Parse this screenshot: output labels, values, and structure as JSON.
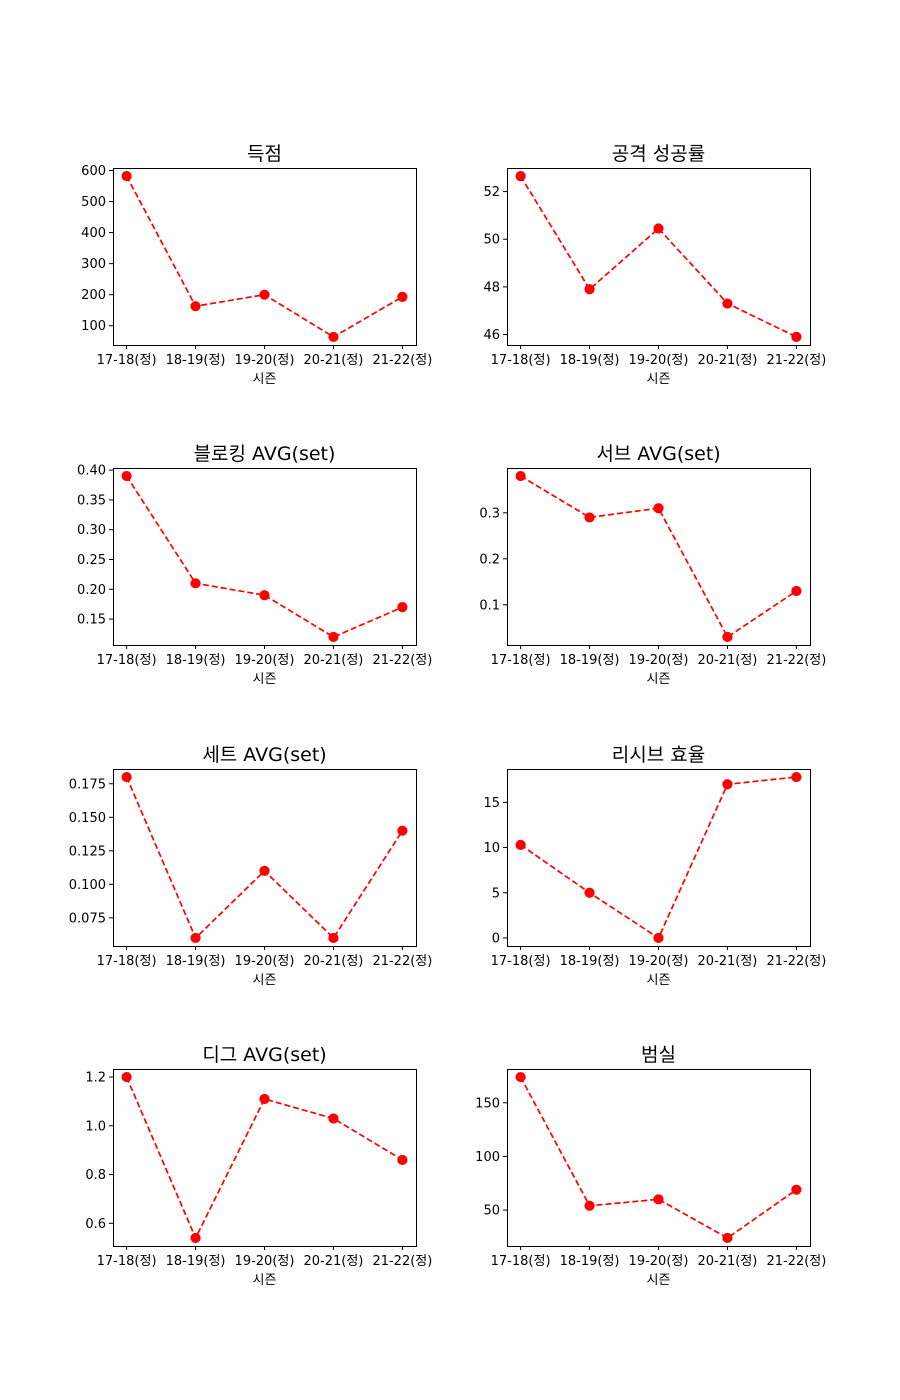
{
  "chart_data": [
    {
      "type": "line",
      "title": "득점",
      "xlabel": "시즌",
      "categories": [
        "17-18(정)",
        "18-19(정)",
        "19-20(정)",
        "20-21(정)",
        "21-22(정)"
      ],
      "values": [
        582,
        163,
        200,
        64,
        193
      ],
      "yticks": [
        100,
        200,
        300,
        400,
        500,
        600
      ],
      "ylim": [
        38,
        608
      ],
      "color": "#ff0000",
      "line_style": "dashed",
      "marker": "circle",
      "grid": false
    },
    {
      "type": "line",
      "title": "공격 성공률",
      "xlabel": "시즌",
      "categories": [
        "17-18(정)",
        "18-19(정)",
        "19-20(정)",
        "20-21(정)",
        "21-22(정)"
      ],
      "values": [
        52.65,
        47.9,
        50.45,
        47.3,
        45.9
      ],
      "yticks": [
        46,
        48,
        50,
        52
      ],
      "ylim": [
        45.56,
        52.99
      ],
      "color": "#ff0000",
      "line_style": "dashed",
      "marker": "circle",
      "grid": false
    },
    {
      "type": "line",
      "title": "블로킹 AVG(set)",
      "xlabel": "시즌",
      "categories": [
        "17-18(정)",
        "18-19(정)",
        "19-20(정)",
        "20-21(정)",
        "21-22(정)"
      ],
      "values": [
        0.39,
        0.21,
        0.19,
        0.12,
        0.17
      ],
      "yticks": [
        0.15,
        0.2,
        0.25,
        0.3,
        0.35,
        0.4
      ],
      "ylim": [
        0.1065,
        0.4035
      ],
      "color": "#ff0000",
      "line_style": "dashed",
      "marker": "circle",
      "grid": false
    },
    {
      "type": "line",
      "title": "서브 AVG(set)",
      "xlabel": "시즌",
      "categories": [
        "17-18(정)",
        "18-19(정)",
        "19-20(정)",
        "20-21(정)",
        "21-22(정)"
      ],
      "values": [
        0.38,
        0.29,
        0.31,
        0.03,
        0.13
      ],
      "yticks": [
        0.1,
        0.2,
        0.3
      ],
      "ylim": [
        0.0125,
        0.3975
      ],
      "color": "#ff0000",
      "line_style": "dashed",
      "marker": "circle",
      "grid": false
    },
    {
      "type": "line",
      "title": "세트 AVG(set)",
      "xlabel": "시즌",
      "categories": [
        "17-18(정)",
        "18-19(정)",
        "19-20(정)",
        "20-21(정)",
        "21-22(정)"
      ],
      "values": [
        0.18,
        0.06,
        0.11,
        0.06,
        0.14
      ],
      "yticks": [
        0.075,
        0.1,
        0.125,
        0.15,
        0.175
      ],
      "ylim": [
        0.054,
        0.186
      ],
      "color": "#ff0000",
      "line_style": "dashed",
      "marker": "circle",
      "grid": false
    },
    {
      "type": "line",
      "title": "리시브 효율",
      "xlabel": "시즌",
      "categories": [
        "17-18(정)",
        "18-19(정)",
        "19-20(정)",
        "20-21(정)",
        "21-22(정)"
      ],
      "values": [
        10.3,
        5.0,
        0.0,
        17.0,
        17.8
      ],
      "yticks": [
        0,
        5,
        10,
        15
      ],
      "ylim": [
        -0.89,
        18.69
      ],
      "color": "#ff0000",
      "line_style": "dashed",
      "marker": "circle",
      "grid": false
    },
    {
      "type": "line",
      "title": "디그 AVG(set)",
      "xlabel": "시즌",
      "categories": [
        "17-18(정)",
        "18-19(정)",
        "19-20(정)",
        "20-21(정)",
        "21-22(정)"
      ],
      "values": [
        1.2,
        0.54,
        1.11,
        1.03,
        0.86
      ],
      "yticks": [
        0.6,
        0.8,
        1.0,
        1.2
      ],
      "ylim": [
        0.507,
        1.233
      ],
      "color": "#ff0000",
      "line_style": "dashed",
      "marker": "circle",
      "grid": false
    },
    {
      "type": "line",
      "title": "범실",
      "xlabel": "시즌",
      "categories": [
        "17-18(정)",
        "18-19(정)",
        "19-20(정)",
        "20-21(정)",
        "21-22(정)"
      ],
      "values": [
        174,
        54,
        60,
        24,
        69
      ],
      "yticks": [
        50,
        100,
        150
      ],
      "ylim": [
        16.5,
        181.5
      ],
      "color": "#ff0000",
      "line_style": "dashed",
      "marker": "circle",
      "grid": false
    }
  ]
}
